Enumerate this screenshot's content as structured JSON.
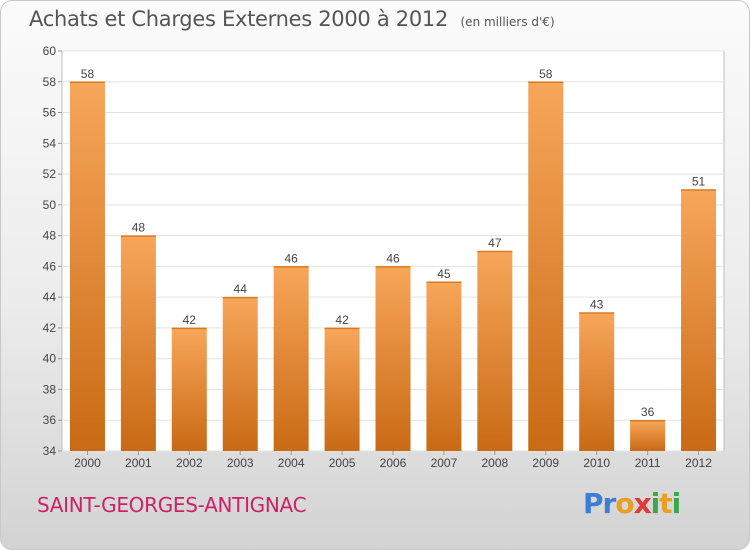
{
  "header": {
    "title": "Achats et Charges Externes 2000 à 2012",
    "unit": "(en milliers d'€)"
  },
  "footer": {
    "place": "SAINT-GEORGES-ANTIGNAC",
    "logo_letters": [
      "P",
      "r",
      "o",
      "x",
      "i",
      "t",
      "i"
    ],
    "logo_colors": [
      "#3b7dd8",
      "#3b7dd8",
      "#e8a020",
      "#e03a3a",
      "#3aa84a",
      "#e8a020",
      "#3aa84a"
    ]
  },
  "chart_data": {
    "type": "bar",
    "categories": [
      "2000",
      "2001",
      "2002",
      "2003",
      "2004",
      "2005",
      "2006",
      "2007",
      "2008",
      "2009",
      "2010",
      "2011",
      "2012"
    ],
    "values": [
      58,
      48,
      42,
      44,
      46,
      42,
      46,
      45,
      47,
      58,
      43,
      36,
      51
    ],
    "data_labels": [
      "58",
      "48",
      "42",
      "44",
      "46",
      "42",
      "46",
      "45",
      "47",
      "58",
      "43",
      "36",
      "51"
    ],
    "title": "Achats et Charges Externes 2000 à 2012",
    "ylim": [
      34,
      60
    ],
    "yticks": [
      "34",
      "36",
      "38",
      "40",
      "42",
      "44",
      "46",
      "48",
      "50",
      "52",
      "54",
      "56",
      "58",
      "60"
    ],
    "grid": true,
    "bar_color_top": "#f7a65a",
    "bar_color_bottom": "#c96a14"
  }
}
